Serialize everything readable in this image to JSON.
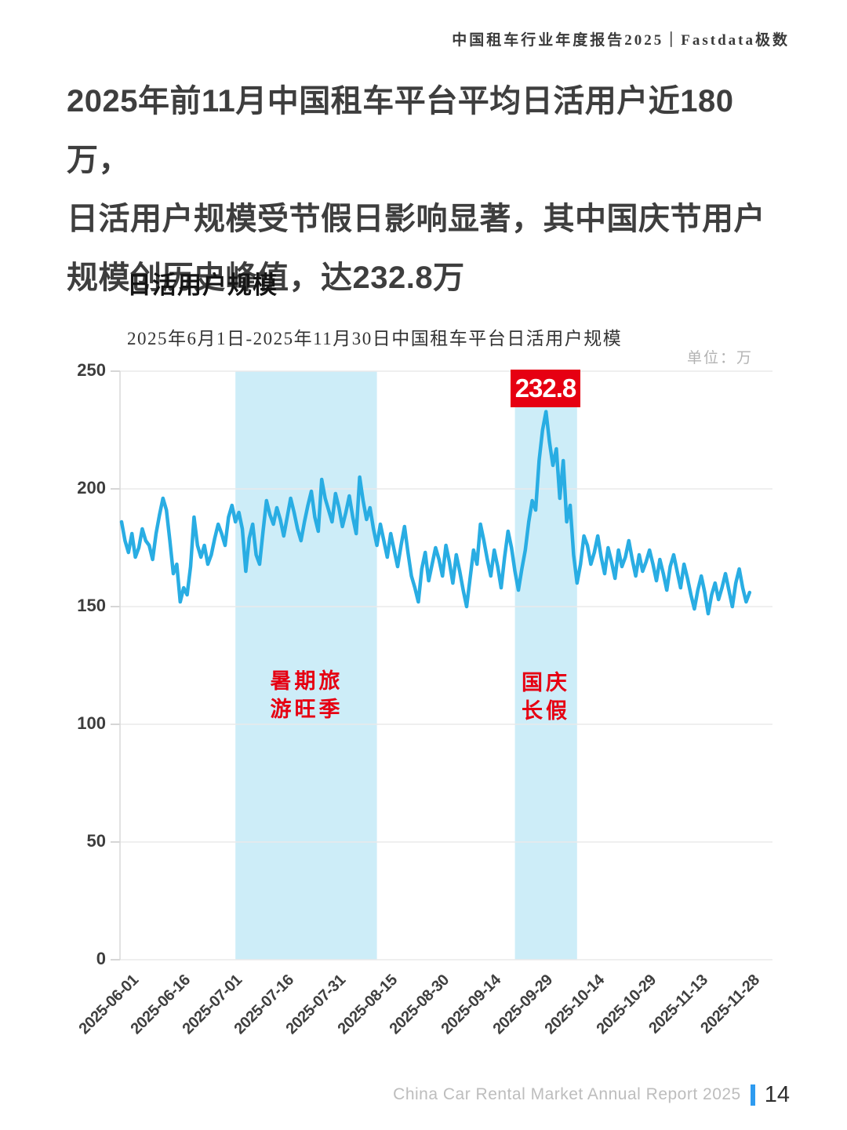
{
  "header": {
    "report_title": "中国租车行业年度报告2025｜Fastdata极数"
  },
  "headline": {
    "text": "2025年前11月中国租车平台平均日活用户近180万，\n日活用户规模受节假日影响显著，其中国庆节用户\n规模创历史峰值，达232.8万"
  },
  "section": {
    "title": "日活用户规模"
  },
  "chart_data": {
    "type": "line",
    "title": "2025年6月1日-2025年11月30日中国租车平台日活用户规模",
    "unit_label": "单位：万",
    "x_start_date": "2025-06-01",
    "x_end_date": "2025-11-30",
    "x_tick_labels": [
      "2025-06-01",
      "2025-06-16",
      "2025-07-01",
      "2025-07-16",
      "2025-07-31",
      "2025-08-15",
      "2025-08-30",
      "2025-09-14",
      "2025-09-29",
      "2025-10-14",
      "2025-10-29",
      "2025-11-13",
      "2025-11-28"
    ],
    "x_tick_interval_days": 15,
    "y_ticks": [
      0,
      50,
      100,
      150,
      200,
      250
    ],
    "ylim": [
      0,
      250
    ],
    "grid": true,
    "series": [
      {
        "name": "日活用户规模",
        "color": "#29ade3",
        "values": [
          186,
          178,
          173,
          181,
          171,
          175,
          183,
          178,
          176,
          170,
          181,
          189,
          196,
          191,
          178,
          164,
          168,
          152,
          158,
          155,
          167,
          188,
          176,
          171,
          176,
          168,
          172,
          179,
          185,
          181,
          176,
          188,
          193,
          186,
          190,
          183,
          165,
          179,
          185,
          172,
          168,
          182,
          195,
          189,
          185,
          192,
          187,
          180,
          188,
          196,
          190,
          183,
          178,
          186,
          193,
          199,
          188,
          182,
          204,
          196,
          191,
          186,
          198,
          192,
          184,
          190,
          197,
          188,
          181,
          205,
          195,
          187,
          192,
          183,
          176,
          185,
          178,
          171,
          181,
          174,
          167,
          176,
          184,
          173,
          163,
          158,
          152,
          166,
          173,
          161,
          168,
          175,
          170,
          163,
          176,
          169,
          160,
          172,
          165,
          157,
          150,
          162,
          174,
          168,
          185,
          178,
          170,
          163,
          174,
          167,
          158,
          171,
          182,
          175,
          165,
          157,
          166,
          174,
          186,
          195,
          191,
          212,
          225,
          232.8,
          220,
          210,
          217,
          196,
          212,
          186,
          193,
          172,
          160,
          168,
          180,
          176,
          168,
          173,
          180,
          171,
          164,
          175,
          169,
          162,
          174,
          167,
          171,
          178,
          170,
          163,
          172,
          165,
          169,
          174,
          168,
          161,
          170,
          164,
          157,
          167,
          172,
          165,
          158,
          168,
          162,
          155,
          149,
          157,
          163,
          156,
          147,
          155,
          160,
          153,
          158,
          164,
          157,
          150,
          160,
          166,
          158,
          152,
          156
        ]
      }
    ],
    "peak": {
      "label": "232.8",
      "value": 232.8,
      "date": "2025-10-02"
    },
    "highlights": [
      {
        "label": "暑期旅\n游旺季",
        "from_index": 33,
        "to_index": 74
      },
      {
        "label": "国庆\n长假",
        "from_index": 114,
        "to_index": 132
      }
    ],
    "colors": {
      "line": "#29ade3",
      "band": "#cdedf8",
      "grid": "#eaeaea",
      "axis": "#d8d8d8",
      "annotation_red": "#e60012",
      "badge_bg": "#e60012",
      "badge_text": "#ffffff"
    }
  },
  "footer": {
    "text": "China Car Rental Market Annual Report 2025",
    "page_number": "14",
    "accent_color": "#2e9bf0"
  }
}
